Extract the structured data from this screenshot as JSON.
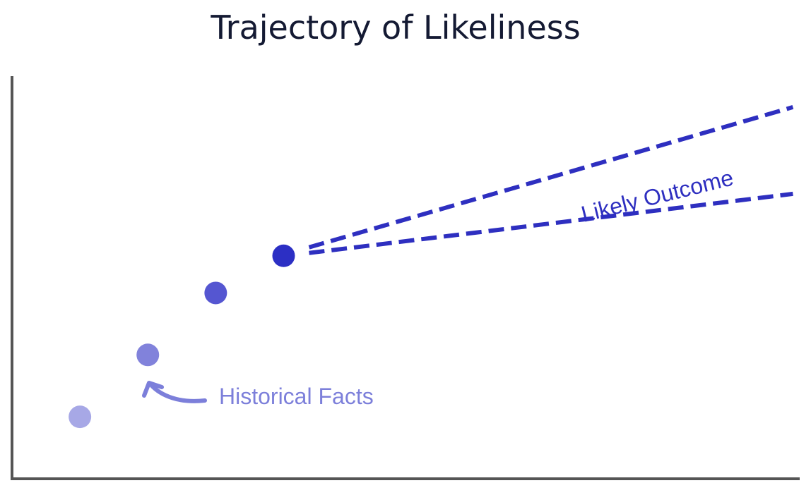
{
  "title": "Trajectory of Likeliness",
  "annotations": {
    "historical": {
      "label": "Historical Facts",
      "color": "#7c7fda"
    },
    "outcome": {
      "label": "Likely Outcome",
      "color": "#2e2fc0"
    }
  },
  "chart_data": {
    "type": "scatter",
    "title": "Trajectory of Likeliness",
    "xlabel": "",
    "ylabel": "",
    "grid": false,
    "points": [
      {
        "x": 1,
        "y": 1,
        "color": "#a7a8e6"
      },
      {
        "x": 2,
        "y": 2,
        "color": "#8182db"
      },
      {
        "x": 3,
        "y": 3,
        "color": "#5556d1"
      },
      {
        "x": 4,
        "y": 3.6,
        "color": "#2c2fc4"
      }
    ],
    "projection": {
      "style": "dashed",
      "color": "#2e2fc0",
      "from_point": 4,
      "upper": {
        "end": {
          "x": 11.5,
          "y": 6
        }
      },
      "lower": {
        "end": {
          "x": 11.5,
          "y": 4.6
        }
      }
    },
    "xlim": [
      0,
      11.6
    ],
    "ylim": [
      0,
      6.5
    ]
  }
}
